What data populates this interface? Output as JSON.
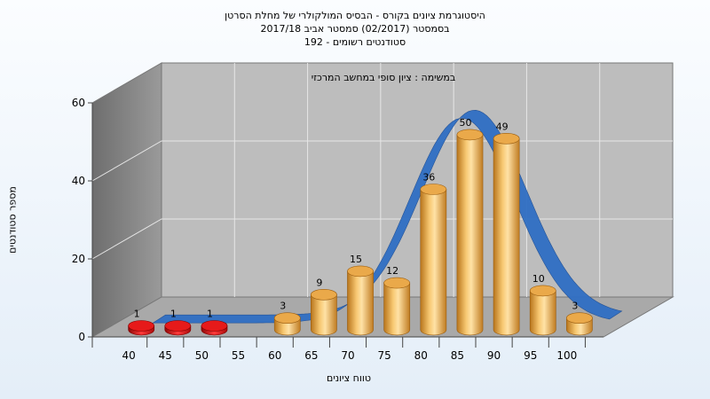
{
  "chart_data": {
    "type": "bar",
    "title_lines": [
      "היסטוגרמת ציונים בקורס - הבסיס המולקולרי של מחלת הסרטן",
      "בסמסטר  (02/2017)  סמסטר אביב 2017/18",
      "סטודנטים רשומים - 192"
    ],
    "annotation": "במשימה : ציון סופי במחשב המרכזי",
    "xlabel": "טווח ציונים",
    "ylabel": "מספר סטודנטים",
    "x_ticks": [
      "40",
      "45",
      "50",
      "55",
      "60",
      "65",
      "70",
      "75",
      "80",
      "85",
      "90",
      "95",
      "100"
    ],
    "y_ticks": [
      "0",
      "20",
      "40",
      "60"
    ],
    "ylim": [
      0,
      60
    ],
    "categories": [
      "40",
      "45",
      "50",
      "60",
      "65",
      "70",
      "75",
      "80",
      "85",
      "90",
      "95",
      "100"
    ],
    "values": [
      1,
      1,
      1,
      3,
      9,
      15,
      12,
      36,
      50,
      49,
      10,
      3
    ],
    "value_labels": [
      "1",
      "1",
      "1",
      "3",
      "9",
      "15",
      "12",
      "36",
      "50",
      "49",
      "10",
      "3"
    ],
    "fail_color": "#d61010",
    "pass_color": "#e8a23a",
    "curve_color": "#2f6fc4",
    "grid": true
  }
}
